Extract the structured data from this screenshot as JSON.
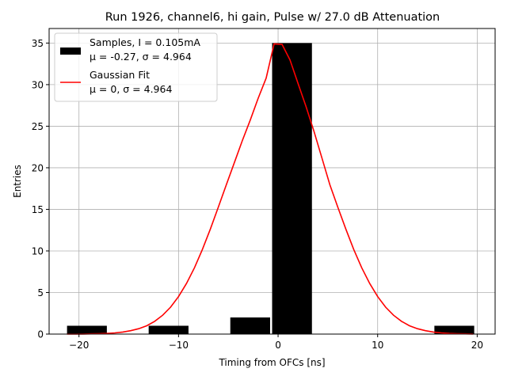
{
  "chart_data": {
    "type": "bar",
    "title": "Run 1926, channel6, hi gain, Pulse w/ 27.0 dB Attenuation",
    "xlabel": "Timing from OFCs [ns]",
    "ylabel": "Entries",
    "xlim": [
      -23.0,
      21.8
    ],
    "ylim": [
      0,
      36.75
    ],
    "xticks": [
      -20,
      -10,
      0,
      10,
      20
    ],
    "yticks": [
      0,
      5,
      10,
      15,
      20,
      25,
      30,
      35
    ],
    "grid": true,
    "legend_position": "top-left",
    "histogram": {
      "name": "Samples, I = 0.105mA",
      "stats": "μ = -0.27, σ = 4.964",
      "color": "#000000",
      "bins": [
        {
          "x0": -21.2,
          "x1": -17.2,
          "count": 1
        },
        {
          "x0": -13.0,
          "x1": -9.0,
          "count": 1
        },
        {
          "x0": -4.8,
          "x1": -0.8,
          "count": 2
        },
        {
          "x0": -0.6,
          "x1": 3.4,
          "count": 35
        },
        {
          "x0": 15.7,
          "x1": 19.7,
          "count": 1
        }
      ]
    },
    "fit": {
      "name": "Gaussian Fit",
      "stats": "μ = 0, σ = 4.964",
      "color": "#ff0000",
      "type": "line",
      "x": [
        -21.2,
        -20.4,
        -19.6,
        -18.8,
        -18.0,
        -17.2,
        -16.4,
        -15.6,
        -14.8,
        -14.0,
        -13.2,
        -12.4,
        -11.6,
        -10.8,
        -10.0,
        -9.2,
        -8.4,
        -7.6,
        -6.8,
        -6.0,
        -5.2,
        -4.4,
        -3.6,
        -2.8,
        -2.0,
        -1.2,
        -0.4,
        0.4,
        1.2,
        2.0,
        2.8,
        3.6,
        4.4,
        5.2,
        6.0,
        6.8,
        7.6,
        8.4,
        9.2,
        10.0,
        10.8,
        11.6,
        12.4,
        13.2,
        14.0,
        14.8,
        15.6,
        16.4,
        17.2,
        18.0,
        18.8,
        19.6
      ],
      "y": [
        0.0,
        0.0,
        0.01,
        0.03,
        0.05,
        0.08,
        0.14,
        0.25,
        0.41,
        0.65,
        1.0,
        1.53,
        2.27,
        3.24,
        4.51,
        6.08,
        7.98,
        10.18,
        12.64,
        15.27,
        17.96,
        20.58,
        23.24,
        25.73,
        28.36,
        30.79,
        34.9,
        34.84,
        32.96,
        30.14,
        27.39,
        24.4,
        21.2,
        17.96,
        15.27,
        12.64,
        10.18,
        7.98,
        6.08,
        4.51,
        3.24,
        2.27,
        1.53,
        1.0,
        0.65,
        0.41,
        0.25,
        0.14,
        0.08,
        0.05,
        0.03,
        0.01
      ]
    }
  }
}
